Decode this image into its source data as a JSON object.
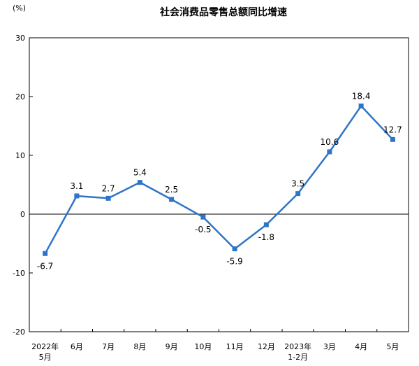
{
  "chart_data": {
    "type": "line",
    "title": "社会消费品零售总额同比增速",
    "ylabel": "(%)",
    "xlabel": "",
    "ylim": [
      -20,
      30
    ],
    "yticks": [
      30,
      20,
      10,
      0,
      -10,
      -20
    ],
    "categories": [
      {
        "line1": "2022年",
        "line2": "5月"
      },
      {
        "line1": "6月",
        "line2": ""
      },
      {
        "line1": "7月",
        "line2": ""
      },
      {
        "line1": "8月",
        "line2": ""
      },
      {
        "line1": "9月",
        "line2": ""
      },
      {
        "line1": "10月",
        "line2": ""
      },
      {
        "line1": "11月",
        "line2": ""
      },
      {
        "line1": "12月",
        "line2": ""
      },
      {
        "line1": "2023年",
        "line2": "1-2月"
      },
      {
        "line1": "3月",
        "line2": ""
      },
      {
        "line1": "4月",
        "line2": ""
      },
      {
        "line1": "5月",
        "line2": ""
      }
    ],
    "series": [
      {
        "values": [
          -6.7,
          3.1,
          2.7,
          5.4,
          2.5,
          -0.5,
          -5.9,
          -1.8,
          3.5,
          10.6,
          18.4,
          12.7
        ],
        "labels": [
          "-6.7",
          "3.1",
          "2.7",
          "5.4",
          "2.5",
          "-0.5",
          "-5.9",
          "-1.8",
          "3.5",
          "10.6",
          "18.4",
          "12.7"
        ],
        "label_position": [
          "below",
          "above",
          "above",
          "above",
          "above",
          "below",
          "below",
          "below",
          "above",
          "above",
          "above",
          "above"
        ],
        "color": "#2e75c8"
      }
    ],
    "grid": false,
    "legend": "none"
  }
}
